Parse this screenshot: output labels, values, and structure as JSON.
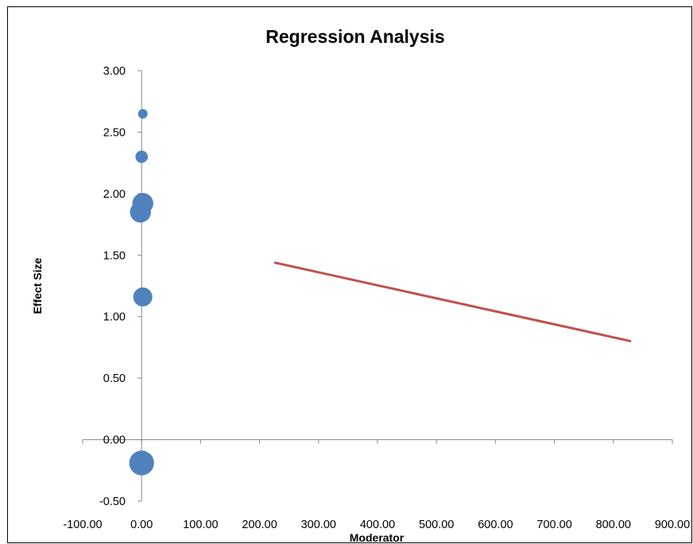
{
  "chart_data": {
    "type": "scatter",
    "title": "Regression Analysis",
    "xlabel": "Moderator",
    "ylabel": "Effect Size",
    "xlim": [
      -100,
      900
    ],
    "ylim": [
      -0.5,
      3.0
    ],
    "x_ticks": [
      -100,
      0,
      100,
      200,
      300,
      400,
      500,
      600,
      700,
      800,
      900
    ],
    "x_tick_labels": [
      "-100.00",
      "0.00",
      "100.00",
      "200.00",
      "300.00",
      "400.00",
      "500.00",
      "600.00",
      "700.00",
      "800.00",
      "900.00"
    ],
    "y_ticks": [
      -0.5,
      0,
      0.5,
      1.0,
      1.5,
      2.0,
      2.5,
      3.0
    ],
    "y_tick_labels": [
      "-0.50",
      "0.00",
      "0.50",
      "1.00",
      "1.50",
      "2.00",
      "2.50",
      "3.00"
    ],
    "grid": false,
    "legend": "none",
    "colors": {
      "points": "#4F81BD",
      "line": "#C0504D"
    },
    "points": [
      {
        "x": 2,
        "y": 2.65,
        "weight": 1
      },
      {
        "x": 0,
        "y": 2.3,
        "weight": 1.3
      },
      {
        "x": 2,
        "y": 1.92,
        "weight": 2.2
      },
      {
        "x": -2,
        "y": 1.85,
        "weight": 2.2
      },
      {
        "x": 2,
        "y": 1.16,
        "weight": 2.0
      },
      {
        "x": 0,
        "y": -0.19,
        "weight": 2.6
      }
    ],
    "regression_line": {
      "x": [
        225,
        830
      ],
      "y": [
        1.44,
        0.8
      ]
    }
  }
}
